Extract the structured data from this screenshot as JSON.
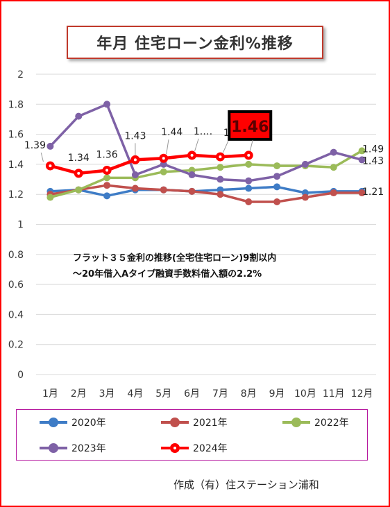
{
  "title": "年月 住宅ローン金利%推移",
  "note_lines": [
    "フラット３５金利の推移(全宅住宅ローン)9割以内",
    "～20年借入Aタイプ融資手数料借入額の2.2%"
  ],
  "footer": "作成（有）住ステーション浦和",
  "colors": {
    "2020": "#3e7cc6",
    "2021": "#c0504d",
    "2022": "#9bbb59",
    "2023": "#7e61a6",
    "2024": "#ff0000",
    "highlight_bg": "#ff0000",
    "highlight_text": "#5a0000"
  },
  "chart_data": {
    "type": "line",
    "categories": [
      "1月",
      "2月",
      "3月",
      "4月",
      "5月",
      "6月",
      "7月",
      "8月",
      "9月",
      "10月",
      "11月",
      "12月"
    ],
    "ylim": [
      0,
      2
    ],
    "yticks": [
      "0",
      "0.2",
      "0.4",
      "0.6",
      "0.8",
      "1",
      "1.2",
      "1.4",
      "1.6",
      "1.8",
      "2"
    ],
    "grid": "horizontal",
    "legend_position": "bottom",
    "series": [
      {
        "name": "2020年",
        "values": [
          1.22,
          1.23,
          1.19,
          1.23,
          1.23,
          1.22,
          1.23,
          1.24,
          1.25,
          1.21,
          1.22,
          1.22
        ]
      },
      {
        "name": "2021年",
        "values": [
          1.2,
          1.23,
          1.26,
          1.24,
          1.23,
          1.22,
          1.2,
          1.15,
          1.15,
          1.18,
          1.21,
          1.21
        ]
      },
      {
        "name": "2022年",
        "values": [
          1.18,
          1.23,
          1.31,
          1.31,
          1.35,
          1.36,
          1.38,
          1.4,
          1.39,
          1.39,
          1.38,
          1.49
        ]
      },
      {
        "name": "2023年",
        "values": [
          1.52,
          1.72,
          1.8,
          1.33,
          1.4,
          1.33,
          1.3,
          1.29,
          1.32,
          1.4,
          1.48,
          1.43
        ]
      },
      {
        "name": "2024年",
        "values": [
          1.39,
          1.34,
          1.36,
          1.43,
          1.44,
          1.46,
          1.45,
          1.46,
          null,
          null,
          null,
          null
        ]
      }
    ],
    "data_labels": {
      "2024年": [
        "1.39",
        "1.34",
        "1.36",
        "1.43",
        "1.44",
        "1.…",
        "1.45",
        "1.46"
      ],
      "right_end": [
        "1.49",
        "1.43",
        "1.21"
      ]
    }
  }
}
